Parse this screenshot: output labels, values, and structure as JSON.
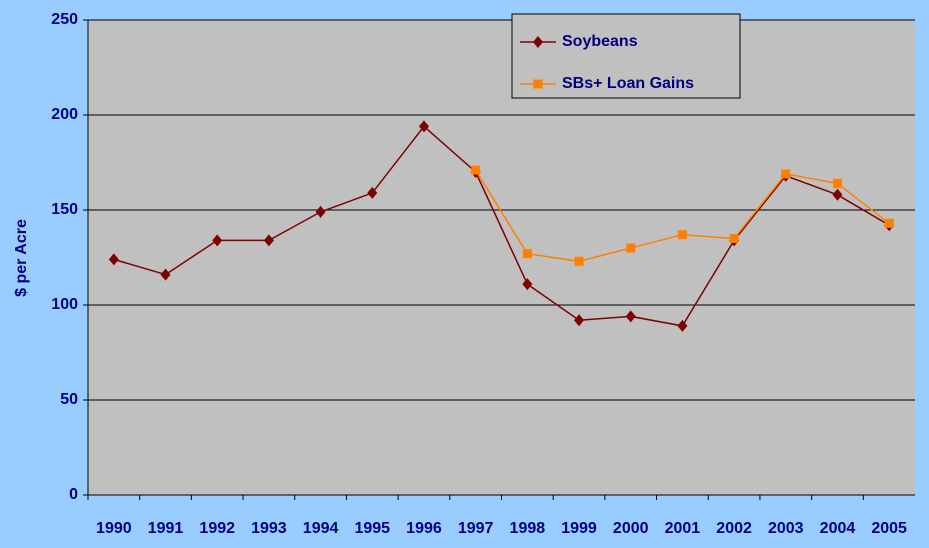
{
  "chart_data": {
    "type": "line",
    "ylabel": "$ per Acre",
    "categories": [
      "1990",
      "1991",
      "1992",
      "1993",
      "1994",
      "1995",
      "1996",
      "1997",
      "1998",
      "1999",
      "2000",
      "2001",
      "2002",
      "2003",
      "2004",
      "2005"
    ],
    "series": [
      {
        "name": "Soybeans",
        "color": "#800000",
        "marker": "diamond",
        "values": [
          124,
          116,
          134,
          134,
          149,
          159,
          194,
          170,
          111,
          92,
          94,
          89,
          134,
          168,
          158,
          142
        ]
      },
      {
        "name": "SBs+ Loan Gains",
        "color": "#ff8000",
        "marker": "square",
        "values": [
          null,
          null,
          null,
          null,
          null,
          null,
          null,
          171,
          127,
          123,
          130,
          137,
          135,
          169,
          164,
          143
        ]
      }
    ],
    "ylim": [
      0,
      250
    ],
    "yticks": [
      0,
      50,
      100,
      150,
      200,
      250
    ],
    "grid": true,
    "legend": "top-right"
  }
}
